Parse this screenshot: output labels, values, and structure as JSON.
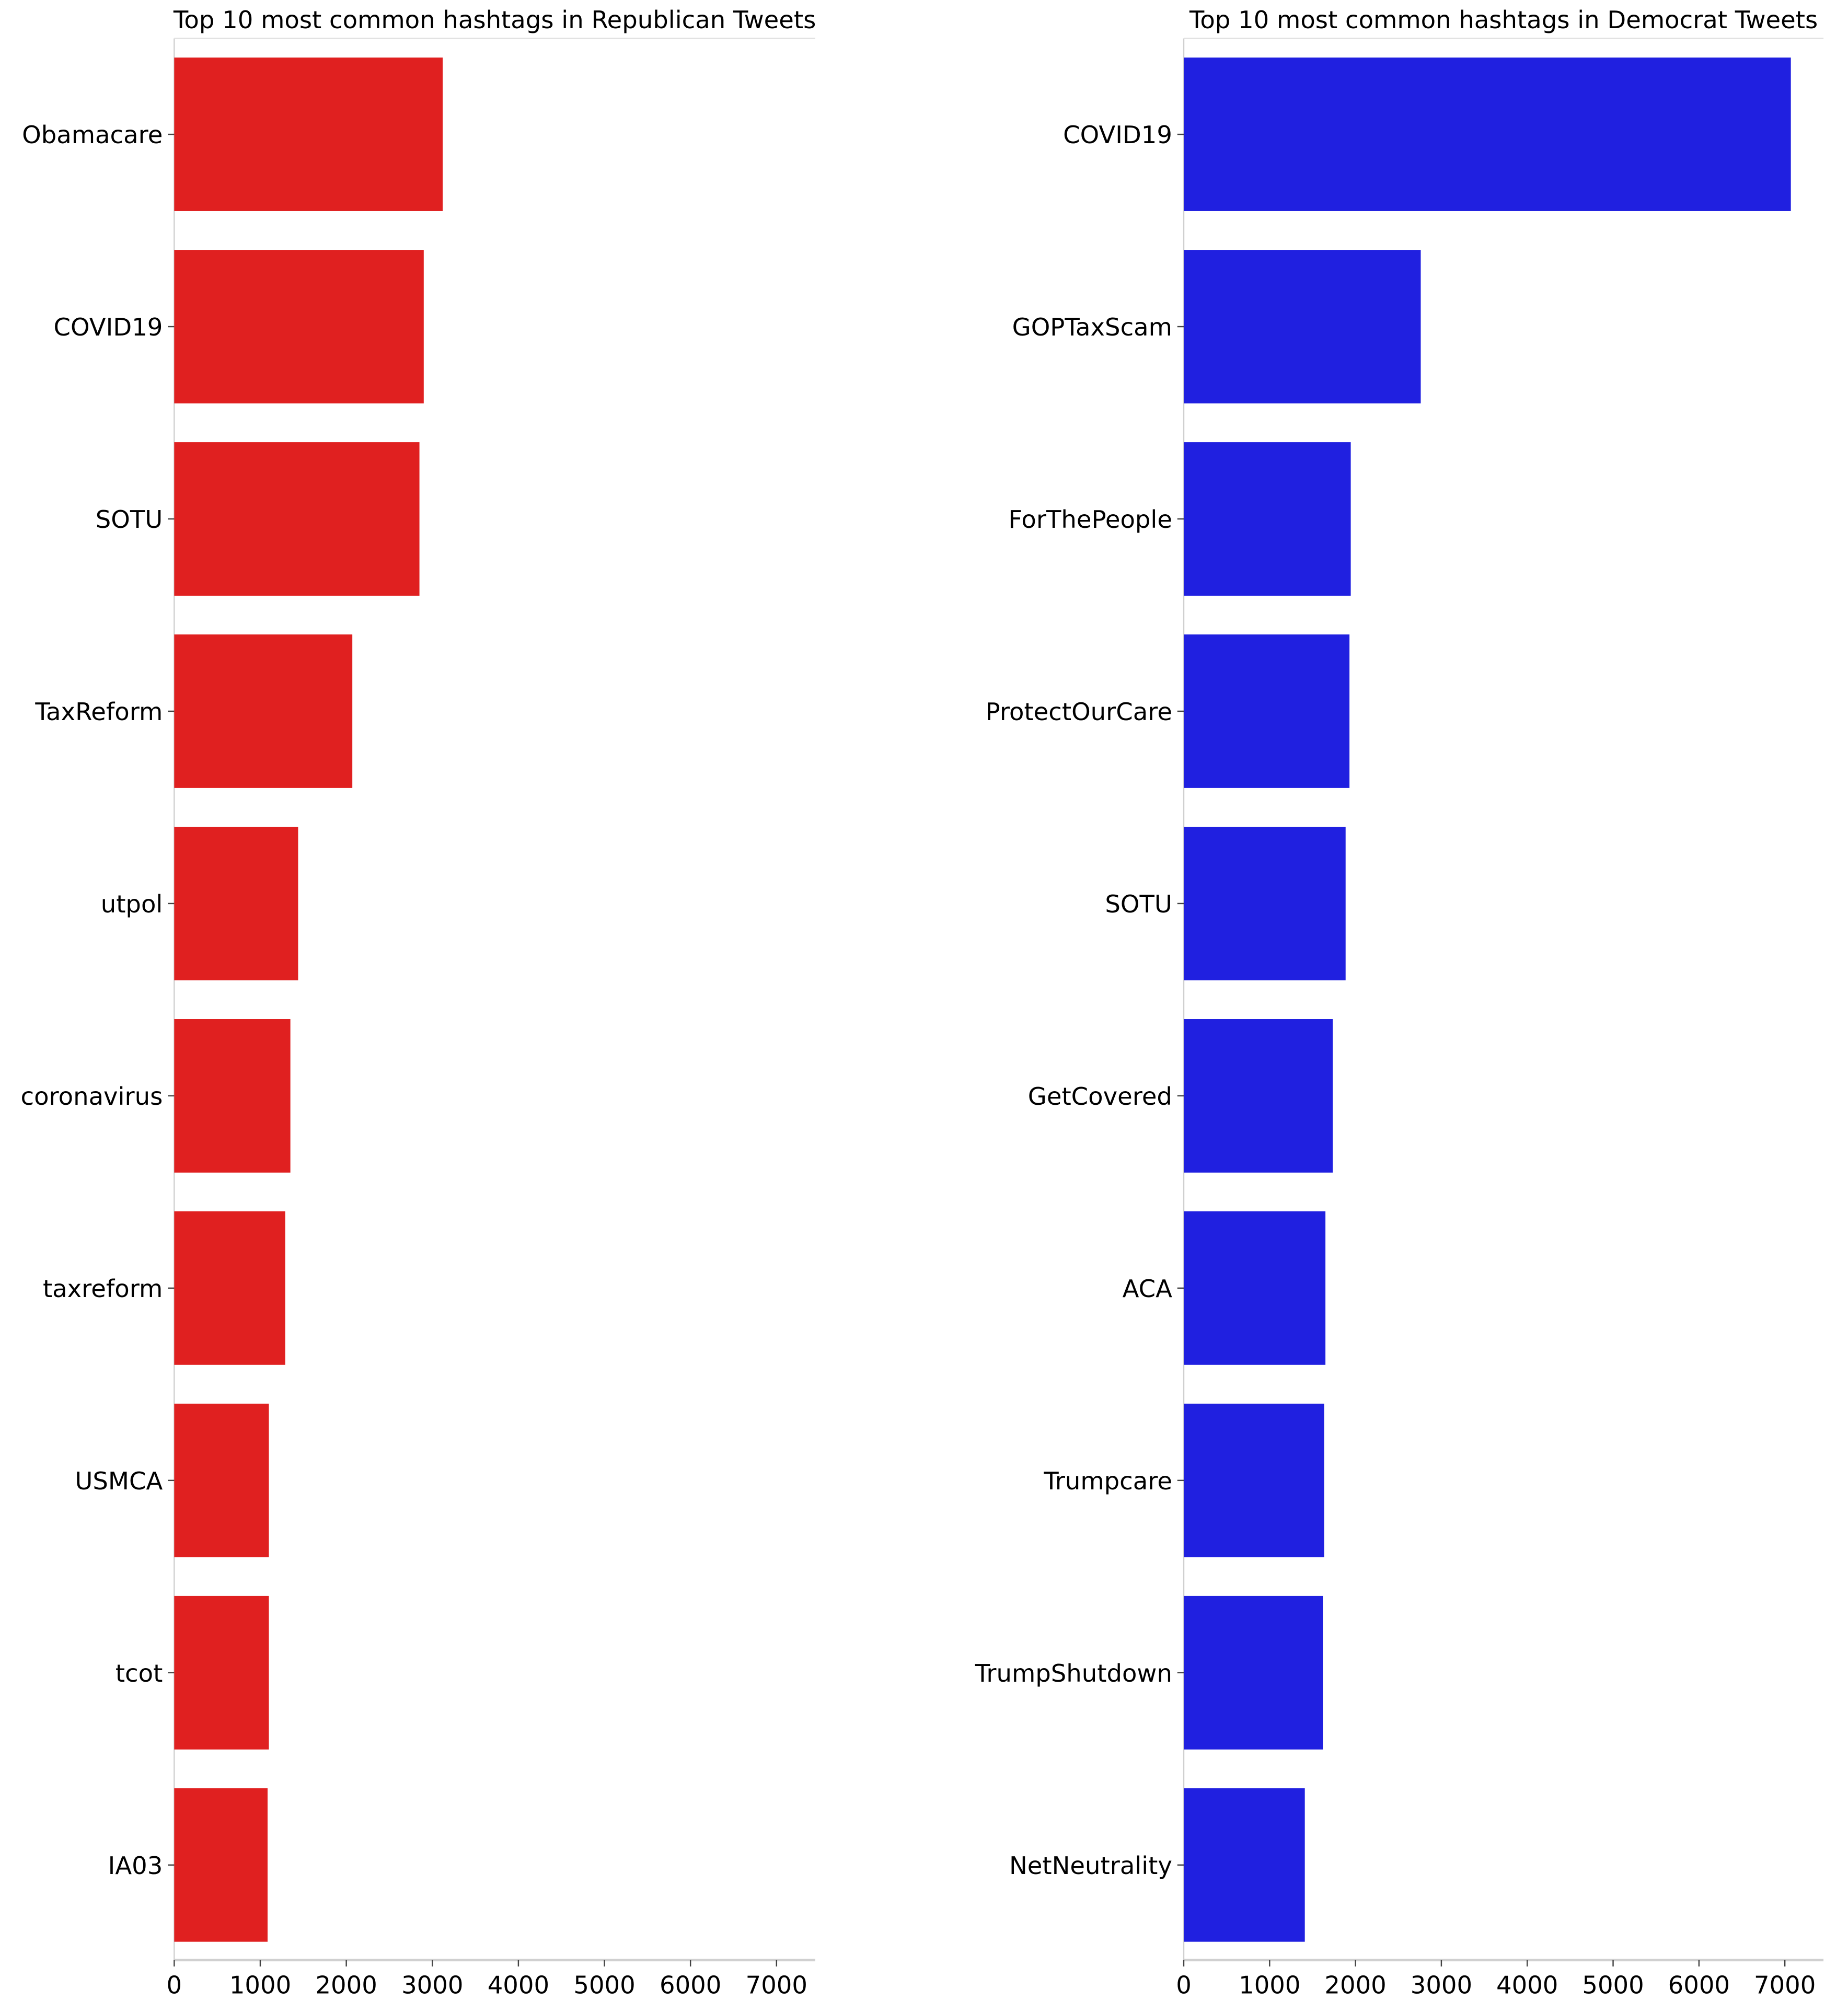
{
  "chart_data": [
    {
      "type": "bar",
      "orientation": "horizontal",
      "title": "Top 10 most common hashtags in Republican Tweets",
      "xlabel": "",
      "ylabel": "",
      "categories": [
        "Obamacare",
        "COVID19",
        "SOTU",
        "TaxReform",
        "utpol",
        "coronavirus",
        "taxreform",
        "USMCA",
        "tcot",
        "IA03"
      ],
      "values": [
        3120,
        2900,
        2850,
        2070,
        1440,
        1350,
        1290,
        1100,
        1100,
        1085
      ],
      "xlim": [
        0,
        7450
      ],
      "xticks": [
        "0",
        "1000",
        "2000",
        "3000",
        "4000",
        "5000",
        "6000",
        "7000"
      ],
      "color": "#e02020",
      "grid": false
    },
    {
      "type": "bar",
      "orientation": "horizontal",
      "title": "Top 10 most common hashtags in Democrat Tweets",
      "xlabel": "",
      "ylabel": "",
      "categories": [
        "COVID19",
        "GOPTaxScam",
        "ForThePeople",
        "ProtectOurCare",
        "SOTU",
        "GetCovered",
        "ACA",
        "Trumpcare",
        "TrumpShutdown",
        "NetNeutrality"
      ],
      "values": [
        7070,
        2760,
        1945,
        1930,
        1885,
        1735,
        1650,
        1635,
        1620,
        1410
      ],
      "xlim": [
        0,
        7450
      ],
      "xticks": [
        "0",
        "1000",
        "2000",
        "3000",
        "4000",
        "5000",
        "6000",
        "7000"
      ],
      "color": "#2020e0",
      "grid": false
    }
  ]
}
